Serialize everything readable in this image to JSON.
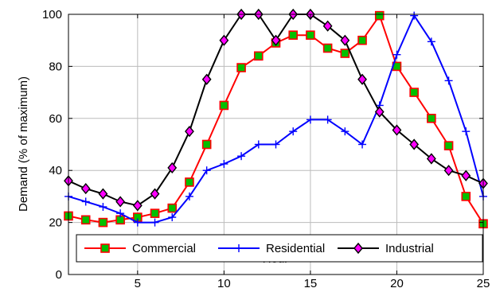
{
  "chart_data": {
    "type": "line",
    "title": "",
    "xlabel": "Hour",
    "ylabel": "Demand (% of maximum)",
    "xlim": [
      1,
      25
    ],
    "ylim": [
      0,
      100
    ],
    "x_ticks": [
      5,
      10,
      15,
      20,
      25
    ],
    "y_ticks": [
      0,
      20,
      40,
      60,
      80,
      100
    ],
    "grid": true,
    "legend": {
      "placement": "bottom",
      "orientation": "horizontal"
    },
    "x": [
      1,
      2,
      3,
      4,
      5,
      6,
      7,
      8,
      9,
      10,
      11,
      12,
      13,
      14,
      15,
      16,
      17,
      18,
      19,
      20,
      21,
      22,
      23,
      24,
      25
    ],
    "series": [
      {
        "name": "Commercial",
        "color": "#ff0000",
        "marker": "square",
        "marker_fill": "#00c000",
        "values": [
          22.5,
          21,
          20,
          21,
          22,
          23.5,
          25.5,
          35.5,
          50,
          65,
          79.5,
          84,
          89,
          92,
          92,
          87,
          85,
          90,
          99.5,
          80,
          70,
          60,
          49.5,
          30,
          19.5
        ]
      },
      {
        "name": "Residential",
        "color": "#0000ff",
        "marker": "plus",
        "values": [
          30,
          28,
          26,
          23.5,
          20,
          20,
          22,
          30,
          40,
          42.5,
          45.5,
          50,
          50,
          55,
          59.5,
          59.5,
          55,
          50,
          65,
          84.5,
          99.5,
          89.5,
          74.5,
          55,
          30
        ]
      },
      {
        "name": "Industrial",
        "color": "#000000",
        "marker": "diamond",
        "marker_fill": "#ff00ff",
        "values": [
          36,
          33,
          31,
          28,
          26.5,
          31,
          41,
          55,
          75,
          90,
          100,
          100,
          90,
          100,
          100,
          95.5,
          90,
          75,
          62.5,
          55.5,
          50,
          44.5,
          40,
          38,
          35
        ]
      }
    ]
  }
}
